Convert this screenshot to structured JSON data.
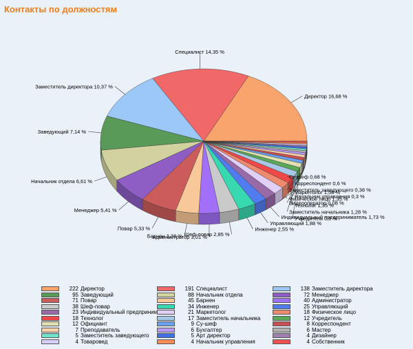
{
  "chart_data": {
    "type": "pie",
    "title": "Контакты по должностям",
    "slices": [
      {
        "label": "Директор",
        "value": 222,
        "color": "#f8a46c"
      },
      {
        "label": "Специалист",
        "value": 191,
        "color": "#f06868"
      },
      {
        "label": "Заместитель директора",
        "value": 138,
        "color": "#9cc8f8"
      },
      {
        "label": "Заведующий",
        "value": 95,
        "color": "#5a9a58"
      },
      {
        "label": "Начальник отдела",
        "value": 88,
        "color": "#d2d2a0"
      },
      {
        "label": "Менеджер",
        "value": 72,
        "color": "#8e5ec4"
      },
      {
        "label": "Повар",
        "value": 71,
        "color": "#cc5c5c"
      },
      {
        "label": "Барнен",
        "value": 45,
        "color": "#f8c898"
      },
      {
        "label": "Администратор",
        "value": 40,
        "color": "#a270f8"
      },
      {
        "label": "Шеф-повар",
        "value": 38,
        "color": "#cacaca"
      },
      {
        "label": "Инженер",
        "value": 34,
        "color": "#38d8b0"
      },
      {
        "label": "Управляющий",
        "value": 25,
        "color": "#507cf0"
      },
      {
        "label": "Индивидуальный предприниматель",
        "value": 23,
        "color": "#986aa8"
      },
      {
        "label": "Маркетолог",
        "value": 21,
        "color": "#e0d0f8"
      },
      {
        "label": "Физическое лицо",
        "value": 18,
        "color": "#ee8a6e"
      },
      {
        "label": "Технолог",
        "value": 18,
        "color": "#f04848"
      },
      {
        "label": "Заместитель начальника",
        "value": 17,
        "color": "#a8c8e8"
      },
      {
        "label": "Учредитель",
        "value": 12,
        "color": "#5aa858"
      },
      {
        "label": "Официант",
        "value": 12,
        "color": "#e0e0b0"
      },
      {
        "label": "Су-шеф",
        "value": 9,
        "color": "#6aa0f0"
      },
      {
        "label": "Корреспондент",
        "value": 8,
        "color": "#c85050"
      },
      {
        "label": "Преподаватель",
        "value": 7,
        "color": "#f8d0a8"
      },
      {
        "label": "Бухгалтер",
        "value": 6,
        "color": "#b898f8"
      },
      {
        "label": "Мастер",
        "value": 6,
        "color": "#b0b0b0"
      },
      {
        "label": "Заместитель заведующего",
        "value": 5,
        "color": "#70e0c8"
      },
      {
        "label": "Арт директор",
        "value": 5,
        "color": "#4070e8"
      },
      {
        "label": "Дизайнер",
        "value": 4,
        "color": "#a080b0"
      },
      {
        "label": "Товаровед",
        "value": 4,
        "color": "#d8d0f8"
      },
      {
        "label": "Начальник управления",
        "value": 4,
        "color": "#f88c58"
      },
      {
        "label": "Собственник",
        "value": 4,
        "color": "#f05050"
      }
    ],
    "pie_labels": [
      {
        "text": "Директор 16,68 %",
        "anchor": "start"
      },
      {
        "text": "Специалист 14,35 %",
        "anchor": "middle"
      },
      {
        "text": "Заместитель директора 10,37 %",
        "anchor": "end"
      },
      {
        "text": "Заведующий 7,14 %",
        "anchor": "end"
      },
      {
        "text": "Начальник отдела 6,61 %",
        "anchor": "end"
      },
      {
        "text": "Менеджер 5,41 %",
        "anchor": "end"
      },
      {
        "text": "Повар 5,33 %",
        "anchor": "end"
      },
      {
        "text": "Барнен 3,38 %",
        "anchor": "end"
      },
      {
        "text": "Администратор 3,01 %",
        "anchor": "end"
      },
      {
        "text": "Шеф-повар 2,85 %",
        "anchor": "end"
      },
      {
        "text": "Инженер 2,55 %",
        "anchor": "start"
      },
      {
        "text": "Управляющий 1,88 %",
        "anchor": "start"
      },
      {
        "text": "Индивидуальный предприниматель 1,73 %",
        "anchor": "start"
      },
      {
        "text": "Маркетолог 1,58 %",
        "anchor": "start"
      },
      {
        "text": "Физическое лицо 1,35 %",
        "anchor": "start"
      },
      {
        "text": "Технолог 1,35 %",
        "anchor": "start"
      },
      {
        "text": "Заместитель начальника 1,28 %",
        "anchor": "start"
      },
      {
        "text": "Учредитель 0,9 %",
        "anchor": "start"
      },
      {
        "text": "Су-шеф 0,68 %",
        "anchor": "start"
      },
      {
        "text": "Корреспондент 0,6 %",
        "anchor": "start"
      },
      {
        "text": "Заместитель заведующего 0,38 %",
        "anchor": "start"
      },
      {
        "text": "Начальник управления 0,3 %",
        "anchor": "start"
      },
      {
        "text": "Видеооператор 0,08 %",
        "anchor": "start"
      }
    ]
  },
  "legend_items": [
    {
      "count": "222",
      "label": "Директор",
      "color": "#f8a46c"
    },
    {
      "count": "191",
      "label": "Специалист",
      "color": "#f06868"
    },
    {
      "count": "138",
      "label": "Заместитель директора",
      "color": "#9cc8f8"
    },
    {
      "count": "95",
      "label": "Заведующий",
      "color": "#5a9a58"
    },
    {
      "count": "88",
      "label": "Начальник отдела",
      "color": "#d2d2a0"
    },
    {
      "count": "72",
      "label": "Менеджер",
      "color": "#8e5ec4"
    },
    {
      "count": "71",
      "label": "Повар",
      "color": "#cc5c5c"
    },
    {
      "count": "45",
      "label": "Барнен",
      "color": "#f8c898"
    },
    {
      "count": "40",
      "label": "Администратор",
      "color": "#a270f8"
    },
    {
      "count": "38",
      "label": "Шеф-повар",
      "color": "#cacaca"
    },
    {
      "count": "34",
      "label": "Инженер",
      "color": "#38d8b0"
    },
    {
      "count": "25",
      "label": "Управляющий",
      "color": "#507cf0"
    },
    {
      "count": "23",
      "label": "Индивидуальный предприниматель",
      "color": "#986aa8"
    },
    {
      "count": "21",
      "label": "Маркетолог",
      "color": "#e0d0f8"
    },
    {
      "count": "18",
      "label": "Физическое лицо",
      "color": "#ee8a6e"
    },
    {
      "count": "18",
      "label": "Технолог",
      "color": "#f04848"
    },
    {
      "count": "17",
      "label": "Заместитель начальника",
      "color": "#a8c8e8"
    },
    {
      "count": "12",
      "label": "Учредитель",
      "color": "#5aa858"
    },
    {
      "count": "12",
      "label": "Официант",
      "color": "#e0e0b0"
    },
    {
      "count": "9",
      "label": "Су-шеф",
      "color": "#6aa0f0"
    },
    {
      "count": "8",
      "label": "Корреспондент",
      "color": "#c85050"
    },
    {
      "count": "7",
      "label": "Преподаватель",
      "color": "#f8d0a8"
    },
    {
      "count": "6",
      "label": "Бухгалтер",
      "color": "#b898f8"
    },
    {
      "count": "6",
      "label": "Мастер",
      "color": "#b0b0b0"
    },
    {
      "count": "5",
      "label": "Заместитель заведующего",
      "color": "#70e0c8"
    },
    {
      "count": "5",
      "label": "Арт директор",
      "color": "#4070e8"
    },
    {
      "count": "4",
      "label": "Дизайнер",
      "color": "#a080b0"
    },
    {
      "count": "4",
      "label": "Товаровед",
      "color": "#d8d0f8"
    },
    {
      "count": "4",
      "label": "Начальник управления",
      "color": "#f88c58"
    },
    {
      "count": "4",
      "label": "Собственник",
      "color": "#f05050"
    }
  ]
}
